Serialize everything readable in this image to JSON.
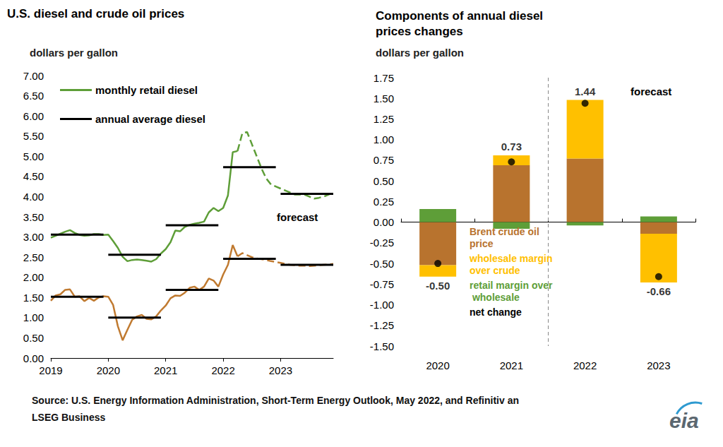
{
  "chart_data": [
    {
      "type": "line",
      "title": "U.S. diesel and crude oil prices",
      "ylabel": "dollars per gallon",
      "categories": [
        "2019",
        null,
        null,
        null,
        null,
        null,
        null,
        null,
        null,
        null,
        null,
        null,
        "2020",
        null,
        null,
        null,
        null,
        null,
        null,
        null,
        null,
        null,
        null,
        null,
        "2021",
        null,
        null,
        null,
        null,
        null,
        null,
        null,
        null,
        null,
        null,
        null,
        "2022",
        null,
        null,
        null,
        null,
        null,
        null,
        null,
        null,
        null,
        null,
        null,
        "2023",
        null,
        null,
        null,
        null,
        null,
        null,
        null,
        null,
        null,
        null,
        null
      ],
      "series": [
        {
          "name": "monthly retail diesel",
          "type": "line",
          "color": "#5E9E38",
          "line_style": "solid",
          "values": [
            2.98,
            3.03,
            3.08,
            3.13,
            3.17,
            3.1,
            3.05,
            3.03,
            3.04,
            3.07,
            3.07,
            3.05,
            3.06,
            2.9,
            2.73,
            2.51,
            2.4,
            2.43,
            2.44,
            2.43,
            2.41,
            2.39,
            2.45,
            2.59,
            2.7,
            2.87,
            3.16,
            3.14,
            3.25,
            3.3,
            3.33,
            3.35,
            3.38,
            3.61,
            3.72,
            3.64,
            3.72,
            4.03,
            5.1,
            5.13,
            null,
            null,
            null,
            null,
            null,
            null,
            null,
            null,
            null,
            null,
            null,
            null,
            null,
            null,
            null,
            null,
            null,
            null,
            null,
            null
          ]
        },
        {
          "type": "line",
          "color": "#5E9E38",
          "line_style": "dashed",
          "values": [
            null,
            null,
            null,
            null,
            null,
            null,
            null,
            null,
            null,
            null,
            null,
            null,
            null,
            null,
            null,
            null,
            null,
            null,
            null,
            null,
            null,
            null,
            null,
            null,
            null,
            null,
            null,
            null,
            null,
            null,
            null,
            null,
            null,
            null,
            null,
            null,
            null,
            null,
            null,
            5.13,
            5.57,
            5.6,
            5.3,
            5.0,
            4.7,
            4.45,
            4.3,
            4.25,
            4.2,
            4.15,
            4.1,
            4.05,
            4.05,
            4.05,
            4.0,
            3.95,
            3.97,
            4.0,
            4.05,
            4.1
          ]
        },
        {
          "name": "annual average diesel",
          "type": "step",
          "color": "#000000",
          "x": [
            "2019",
            "2020",
            "2021",
            "2022",
            "2023"
          ],
          "values": [
            3.06,
            2.56,
            3.29,
            4.73,
            4.07
          ]
        },
        {
          "type": "line",
          "color": "#C07A30",
          "line_style": "solid",
          "values": [
            1.42,
            1.55,
            1.58,
            1.69,
            1.7,
            1.52,
            1.53,
            1.41,
            1.49,
            1.42,
            1.5,
            1.53,
            1.52,
            1.32,
            0.79,
            0.44,
            0.7,
            0.95,
            1.03,
            1.07,
            0.97,
            0.96,
            1.03,
            1.18,
            1.3,
            1.48,
            1.55,
            1.54,
            1.62,
            1.74,
            1.77,
            1.69,
            1.77,
            1.97,
            1.92,
            1.77,
            2.07,
            2.31,
            2.8,
            2.52,
            null,
            null,
            null,
            null,
            null,
            null,
            null,
            null,
            null,
            null,
            null,
            null,
            null,
            null,
            null,
            null,
            null,
            null,
            null,
            null
          ]
        },
        {
          "type": "line",
          "color": "#C07A30",
          "line_style": "dashed",
          "values": [
            null,
            null,
            null,
            null,
            null,
            null,
            null,
            null,
            null,
            null,
            null,
            null,
            null,
            null,
            null,
            null,
            null,
            null,
            null,
            null,
            null,
            null,
            null,
            null,
            null,
            null,
            null,
            null,
            null,
            null,
            null,
            null,
            null,
            null,
            null,
            null,
            null,
            null,
            null,
            2.52,
            2.6,
            2.55,
            2.5,
            2.47,
            2.45,
            2.43,
            2.4,
            2.38,
            2.36,
            2.33,
            2.31,
            2.3,
            2.29,
            2.29,
            2.28,
            2.29,
            2.3,
            2.31,
            2.32,
            2.33
          ]
        },
        {
          "type": "step",
          "color": "#000000",
          "x": [
            "2019",
            "2020",
            "2021",
            "2022",
            "2023"
          ],
          "values": [
            1.52,
            1.0,
            1.69,
            2.46,
            2.31
          ]
        }
      ],
      "ylim": [
        0,
        7
      ],
      "yticks": [
        {
          "value": 0,
          "label": "0.00"
        },
        {
          "value": 0.5,
          "label": "0.50"
        },
        {
          "value": 1,
          "label": "1.00"
        },
        {
          "value": 1.5,
          "label": "1.50"
        },
        {
          "value": 2,
          "label": "2.00"
        },
        {
          "value": 2.5,
          "label": "2.50"
        },
        {
          "value": 3,
          "label": "3.00"
        },
        {
          "value": 3.5,
          "label": "3.50"
        },
        {
          "value": 4,
          "label": "4.00"
        },
        {
          "value": 4.5,
          "label": "4.50"
        },
        {
          "value": 5,
          "label": "5.00"
        },
        {
          "value": 5.5,
          "label": "5.50"
        },
        {
          "value": 6,
          "label": "6.00"
        },
        {
          "value": 6.5,
          "label": "6.50"
        },
        {
          "value": 7,
          "label": "7.00"
        }
      ],
      "grid": false,
      "legend": "upper left",
      "annotations": [
        "forecast"
      ]
    },
    {
      "type": "bar",
      "title": "Components of annual diesel prices changes",
      "ylabel": "dollars per gallon",
      "categories": [
        "2020",
        "2021",
        "2022",
        "2023"
      ],
      "series": [
        {
          "name": "Brent crude oil price",
          "type": "bar",
          "color": "#B8732E",
          "values": [
            -0.52,
            0.69,
            0.77,
            -0.14
          ]
        },
        {
          "name": "wholesale margin over crude",
          "type": "bar",
          "color": "#FFC000",
          "values": [
            -0.14,
            0.12,
            0.71,
            -0.59
          ]
        },
        {
          "name": "retail margin over wholesale",
          "type": "bar",
          "color": "#5E9E38",
          "values": [
            0.16,
            -0.08,
            -0.04,
            0.07
          ]
        },
        {
          "name": "net change",
          "type": "scatter",
          "marker": "circle",
          "color": "#000000",
          "data_labels": true,
          "values": [
            -0.5,
            0.73,
            1.44,
            -0.66
          ],
          "value_labels": [
            "-0.50",
            "0.73",
            "1.44",
            "-0.66"
          ]
        }
      ],
      "stacked": true,
      "ylim": [
        -1.5,
        1.75
      ],
      "yticks": [
        {
          "value": -1.5,
          "label": "-1.50"
        },
        {
          "value": -1.25,
          "label": "-1.25"
        },
        {
          "value": -1,
          "label": "-1.00"
        },
        {
          "value": -0.75,
          "label": "-0.75"
        },
        {
          "value": -0.5,
          "label": "-0.50"
        },
        {
          "value": -0.25,
          "label": "-0.25"
        },
        {
          "value": 0,
          "label": "0.00"
        },
        {
          "value": 0.25,
          "label": "0.25"
        },
        {
          "value": 0.5,
          "label": "0.50"
        },
        {
          "value": 0.75,
          "label": "0.75"
        },
        {
          "value": 1,
          "label": "1.00"
        },
        {
          "value": 1.25,
          "label": "1.25"
        },
        {
          "value": 1.5,
          "label": "1.50"
        },
        {
          "value": 1.75,
          "label": "1.75"
        }
      ],
      "grid": false,
      "legend": "lower left",
      "annotations": [
        "forecast"
      ]
    }
  ],
  "source": "Source: U.S. Energy Information Administration, Short-Term Energy Outlook, May 2022, and Refinitiv an LSEG Business",
  "logo": "eia"
}
